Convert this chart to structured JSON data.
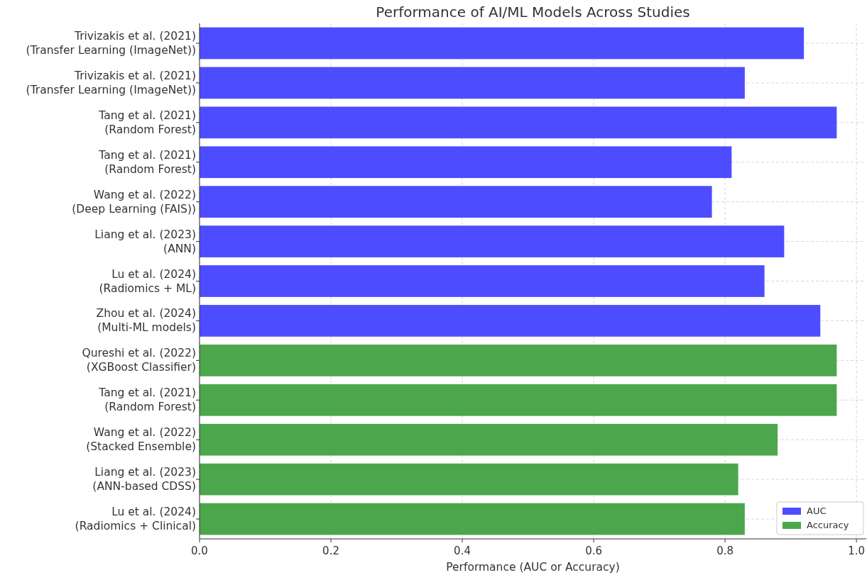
{
  "chart_data": {
    "type": "bar",
    "orientation": "horizontal",
    "stacked": true,
    "title": "Performance of AI/ML Models Across Studies",
    "xlabel": "Performance (AUC or Accuracy)",
    "categories": [
      "Trivizakis et al. (2021)\n(Transfer Learning (ImageNet))",
      "Trivizakis et al. (2021)\n(Transfer Learning (ImageNet))",
      "Tang et al. (2021)\n(Random Forest)",
      "Tang et al. (2021)\n(Random Forest)",
      "Wang et al. (2022)\n(Deep Learning (FAIS))",
      "Liang et al. (2023)\n(ANN)",
      "Lu et al. (2024)\n(Radiomics + ML)",
      "Zhou et al. (2024)\n(Multi-ML models)",
      "Qureshi et al. (2022)\n(XGBoost Classifier)",
      "Tang et al. (2021)\n(Random Forest)",
      "Wang et al. (2022)\n(Stacked Ensemble)",
      "Liang et al. (2023)\n(ANN-based CDSS)",
      "Lu et al. (2024)\n(Radiomics + Clinical)"
    ],
    "series": [
      {
        "name": "AUC",
        "color": "#4d4dff",
        "values": [
          0.92,
          0.83,
          0.97,
          0.81,
          0.78,
          0.89,
          0.86,
          0.945,
          null,
          null,
          null,
          null,
          null
        ]
      },
      {
        "name": "Accuracy",
        "color": "#4ca64c",
        "values": [
          null,
          null,
          null,
          null,
          null,
          null,
          null,
          null,
          0.97,
          0.97,
          0.88,
          0.82,
          0.83
        ]
      }
    ],
    "xlim": [
      0,
      1.015
    ],
    "xticks": [
      {
        "value": 0,
        "label": "0.0"
      },
      {
        "value": 0.2,
        "label": "0.2"
      },
      {
        "value": 0.4,
        "label": "0.4"
      },
      {
        "value": 0.6,
        "label": "0.6"
      },
      {
        "value": 0.8,
        "label": "0.8"
      },
      {
        "value": 1,
        "label": "1.0"
      }
    ],
    "grid": true,
    "legend": "bottom right"
  }
}
